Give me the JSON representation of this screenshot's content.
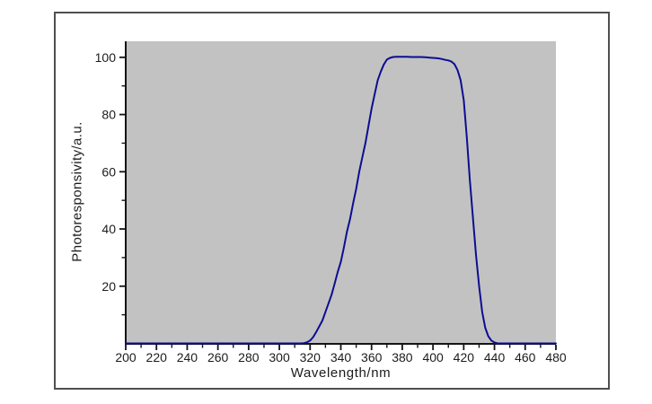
{
  "chart_data": {
    "type": "line",
    "title": "",
    "xlabel": "Wavelength/nm",
    "ylabel": "Photoresponsivity/a.u.",
    "xlim": [
      200,
      480
    ],
    "ylim": [
      0,
      105.6
    ],
    "grid": false,
    "legend": null,
    "plot_bg_color": "#c2c2c2",
    "outer_bg_color": "#ffffff",
    "frame_color": "#4f4f4f",
    "axis_color": "#141414",
    "tick_label_color": "#1c1c1c",
    "line_color": "#0d0d92",
    "x_major_ticks": [
      200,
      220,
      240,
      260,
      280,
      300,
      320,
      340,
      360,
      380,
      400,
      420,
      440,
      460,
      480
    ],
    "x_tick_labels": [
      "200",
      "220",
      "240",
      "260",
      "280",
      "300",
      "320",
      "340",
      "360",
      "380",
      "400",
      "420",
      "440",
      "460",
      "480"
    ],
    "x_minor_ticks": [
      210,
      230,
      250,
      270,
      290,
      310,
      330,
      350,
      370,
      390,
      410,
      430,
      450,
      470
    ],
    "y_major_ticks": [
      20,
      40,
      60,
      80,
      100
    ],
    "y_tick_labels": [
      "20",
      "40",
      "60",
      "80",
      "100"
    ],
    "y_minor_ticks": [
      10,
      30,
      50,
      70,
      90
    ],
    "series": [
      {
        "name": "photoresponsivity",
        "points": [
          [
            200,
            0
          ],
          [
            210,
            0
          ],
          [
            220,
            0
          ],
          [
            230,
            0
          ],
          [
            240,
            0
          ],
          [
            250,
            0
          ],
          [
            260,
            0
          ],
          [
            270,
            0
          ],
          [
            280,
            0
          ],
          [
            290,
            0
          ],
          [
            300,
            0
          ],
          [
            305,
            0
          ],
          [
            310,
            0
          ],
          [
            314,
            0
          ],
          [
            316,
            0.1
          ],
          [
            318,
            0.4
          ],
          [
            320,
            1
          ],
          [
            322,
            2.2
          ],
          [
            324,
            4
          ],
          [
            326,
            6
          ],
          [
            328,
            8
          ],
          [
            330,
            11
          ],
          [
            332,
            14
          ],
          [
            334,
            17
          ],
          [
            336,
            21
          ],
          [
            338,
            25
          ],
          [
            340,
            28.5
          ],
          [
            342,
            33.5
          ],
          [
            344,
            39
          ],
          [
            346,
            43.5
          ],
          [
            348,
            49
          ],
          [
            350,
            54
          ],
          [
            352,
            60
          ],
          [
            354,
            65
          ],
          [
            356,
            70
          ],
          [
            358,
            76
          ],
          [
            360,
            82
          ],
          [
            362,
            87
          ],
          [
            364,
            92
          ],
          [
            366,
            95
          ],
          [
            368,
            97.5
          ],
          [
            370,
            99.2
          ],
          [
            372,
            99.8
          ],
          [
            374,
            100.1
          ],
          [
            376,
            100.2
          ],
          [
            378,
            100.2
          ],
          [
            380,
            100.2
          ],
          [
            383,
            100.2
          ],
          [
            386,
            100.1
          ],
          [
            389,
            100.1
          ],
          [
            392,
            100.1
          ],
          [
            395,
            100
          ],
          [
            398,
            99.9
          ],
          [
            400,
            99.8
          ],
          [
            402,
            99.7
          ],
          [
            404,
            99.6
          ],
          [
            406,
            99.4
          ],
          [
            408,
            99.1
          ],
          [
            410,
            98.9
          ],
          [
            412,
            98.5
          ],
          [
            414,
            97.6
          ],
          [
            416,
            95.5
          ],
          [
            418,
            92
          ],
          [
            420,
            85
          ],
          [
            422,
            72
          ],
          [
            424,
            57
          ],
          [
            426,
            44
          ],
          [
            428,
            31
          ],
          [
            430,
            20
          ],
          [
            432,
            11
          ],
          [
            434,
            5.5
          ],
          [
            436,
            2.5
          ],
          [
            438,
            1
          ],
          [
            440,
            0.3
          ],
          [
            442,
            0
          ],
          [
            446,
            0
          ],
          [
            450,
            0
          ],
          [
            455,
            0
          ],
          [
            460,
            0
          ],
          [
            465,
            0
          ],
          [
            470,
            0
          ],
          [
            475,
            0
          ],
          [
            480,
            0
          ]
        ]
      }
    ]
  }
}
